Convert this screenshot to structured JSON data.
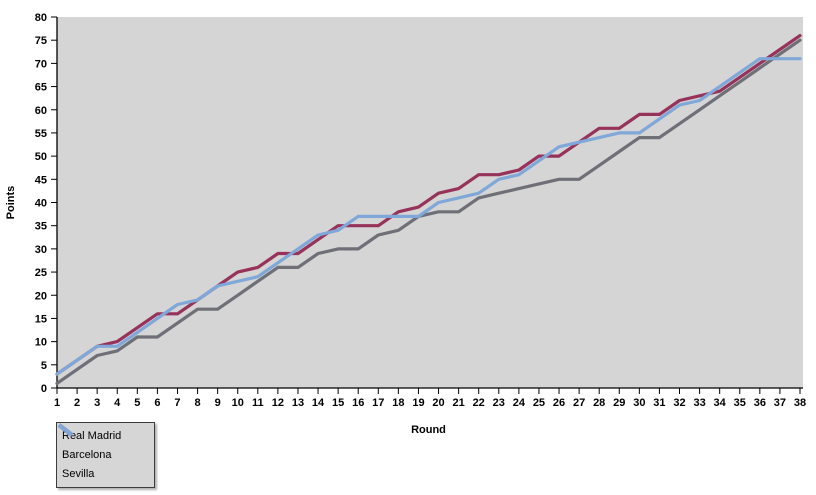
{
  "chart_data": {
    "type": "line",
    "title": "",
    "xlabel": "Round",
    "ylabel": "Points",
    "xlim": [
      1,
      38
    ],
    "ylim": [
      0,
      80
    ],
    "ytick_step": 5,
    "grid": false,
    "legend_position": "bottom-left",
    "plot_background": "#d5d5d5",
    "axis_color": "#000000",
    "rounds": [
      1,
      2,
      3,
      4,
      5,
      6,
      7,
      8,
      9,
      10,
      11,
      12,
      13,
      14,
      15,
      16,
      17,
      18,
      19,
      20,
      21,
      22,
      23,
      24,
      25,
      26,
      27,
      28,
      29,
      30,
      31,
      32,
      33,
      34,
      35,
      36,
      37,
      38
    ],
    "yticks": [
      0,
      5,
      10,
      15,
      20,
      25,
      30,
      35,
      40,
      45,
      50,
      55,
      60,
      65,
      70,
      75,
      80
    ],
    "series": [
      {
        "name": "Real Madrid",
        "color": "#6f6f78",
        "values": [
          1,
          4,
          7,
          8,
          11,
          11,
          14,
          17,
          17,
          20,
          23,
          26,
          26,
          29,
          30,
          30,
          33,
          34,
          37,
          38,
          38,
          41,
          42,
          43,
          44,
          45,
          45,
          48,
          51,
          54,
          54,
          57,
          60,
          63,
          66,
          69,
          72,
          75
        ]
      },
      {
        "name": "Barcelona",
        "color": "#97325a",
        "values": [
          3,
          6,
          9,
          10,
          13,
          16,
          16,
          19,
          22,
          25,
          26,
          29,
          29,
          32,
          35,
          35,
          35,
          38,
          39,
          42,
          43,
          46,
          46,
          47,
          50,
          50,
          53,
          56,
          56,
          59,
          59,
          62,
          63,
          64,
          67,
          70,
          73,
          76
        ]
      },
      {
        "name": "Sevilla",
        "color": "#7fa8d9",
        "values": [
          3,
          6,
          9,
          9,
          12,
          15,
          18,
          19,
          22,
          23,
          24,
          27,
          30,
          33,
          34,
          37,
          37,
          37,
          37,
          40,
          41,
          42,
          45,
          46,
          49,
          52,
          53,
          54,
          55,
          55,
          58,
          61,
          62,
          65,
          68,
          71,
          71,
          71
        ]
      }
    ]
  }
}
